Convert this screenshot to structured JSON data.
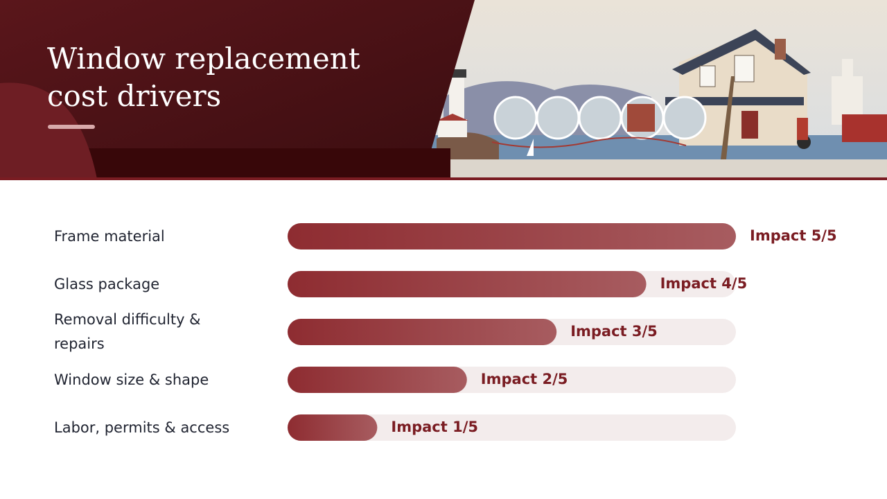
{
  "chart_data": {
    "type": "bar",
    "orientation": "horizontal",
    "title": "Window replacement cost drivers",
    "categories": [
      "Frame material",
      "Glass package",
      "Removal difficulty & repairs",
      "Window size & shape",
      "Labor, permits & access"
    ],
    "values": [
      5,
      4,
      3,
      2,
      1
    ],
    "value_labels": [
      "Impact 5/5",
      "Impact 4/5",
      "Impact 3/5",
      "Impact 2/5",
      "Impact 1/5"
    ],
    "color": "#8e2c31",
    "xlim": [
      0,
      5
    ]
  }
}
